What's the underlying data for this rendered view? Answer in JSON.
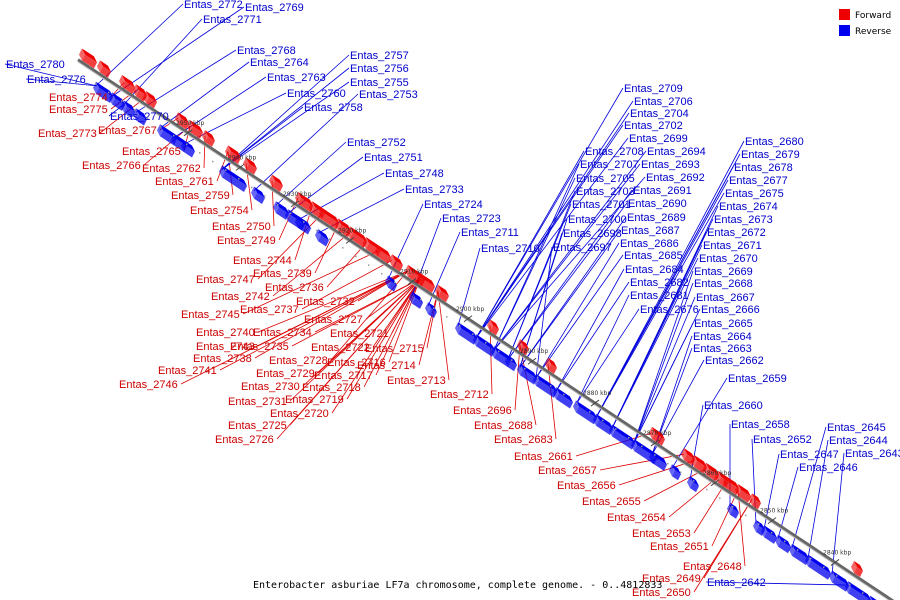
{
  "diagram": {
    "caption": "Enterobacter asburiae LF7a chromosome, complete genome. - 0..4812833",
    "colors": {
      "forward": "#ee0000",
      "reverse": "#0000ee",
      "axis": "#666666",
      "forward_line": "#dd0000",
      "reverse_line": "#0000dd"
    },
    "legend": [
      {
        "label": "Forward",
        "strand": "forward"
      },
      {
        "label": "Reverse",
        "strand": "reverse"
      }
    ],
    "ticks": [
      "2950 kbp",
      "2940 kbp",
      "2930 kbp",
      "2920 kbp",
      "2910 kbp",
      "2900 kbp",
      "2890 kbp",
      "2880 kbp",
      "2870 kbp",
      "2860 kbp",
      "2850 kbp",
      "2840 kbp"
    ],
    "forward_genes": [
      "Entas_2774",
      "Entas_2775",
      "Entas_2773",
      "Entas_2767",
      "Entas_2765",
      "Entas_2766",
      "Entas_2762",
      "Entas_2761",
      "Entas_2759",
      "Entas_2754",
      "Entas_2750",
      "Entas_2749",
      "Entas_2744",
      "Entas_2747",
      "Entas_2739",
      "Entas_2742",
      "Entas_2736",
      "Entas_2745",
      "Entas_2737",
      "Entas_2732",
      "Entas_2740",
      "Entas_2734",
      "Entas_2727",
      "Entas_2743",
      "Entas_2735",
      "Entas_2721",
      "Entas_2738",
      "Entas_2722",
      "Entas_2716",
      "Entas_2715",
      "Entas_2728",
      "Entas_2741",
      "Entas_2729",
      "Entas_2717",
      "Entas_2714",
      "Entas_2746",
      "Entas_2730",
      "Entas_2718",
      "Entas_2713",
      "Entas_2731",
      "Entas_2719",
      "Entas_2712",
      "Entas_2725",
      "Entas_2720",
      "Entas_2696",
      "Entas_2726",
      "Entas_2688",
      "Entas_2683",
      "Entas_2661",
      "Entas_2657",
      "Entas_2656",
      "Entas_2655",
      "Entas_2654",
      "Entas_2653",
      "Entas_2651",
      "Entas_2648",
      "Entas_2649",
      "Entas_2650"
    ],
    "reverse_genes": [
      "Entas_2772",
      "Entas_2769",
      "Entas_2771",
      "Entas_2780",
      "Entas_2776",
      "Entas_2770",
      "Entas_2768",
      "Entas_2764",
      "Entas_2763",
      "Entas_2760",
      "Entas_2758",
      "Entas_2757",
      "Entas_2756",
      "Entas_2755",
      "Entas_2753",
      "Entas_2752",
      "Entas_2751",
      "Entas_2748",
      "Entas_2733",
      "Entas_2724",
      "Entas_2723",
      "Entas_2711",
      "Entas_2710",
      "Entas_2709",
      "Entas_2706",
      "Entas_2704",
      "Entas_2702",
      "Entas_2699",
      "Entas_2708",
      "Entas_2694",
      "Entas_2707",
      "Entas_2693",
      "Entas_2705",
      "Entas_2692",
      "Entas_2703",
      "Entas_2691",
      "Entas_2701",
      "Entas_2690",
      "Entas_2700",
      "Entas_2689",
      "Entas_2698",
      "Entas_2687",
      "Entas_2697",
      "Entas_2686",
      "Entas_2685",
      "Entas_2684",
      "Entas_2682",
      "Entas_2681",
      "Entas_2676",
      "Entas_2680",
      "Entas_2679",
      "Entas_2678",
      "Entas_2677",
      "Entas_2675",
      "Entas_2674",
      "Entas_2673",
      "Entas_2672",
      "Entas_2671",
      "Entas_2670",
      "Entas_2669",
      "Entas_2668",
      "Entas_2667",
      "Entas_2666",
      "Entas_2665",
      "Entas_2664",
      "Entas_2663",
      "Entas_2662",
      "Entas_2659",
      "Entas_2660",
      "Entas_2658",
      "Entas_2652",
      "Entas_2647",
      "Entas_2646",
      "Entas_2645",
      "Entas_2644",
      "Entas_2643",
      "Entas_2642"
    ]
  }
}
